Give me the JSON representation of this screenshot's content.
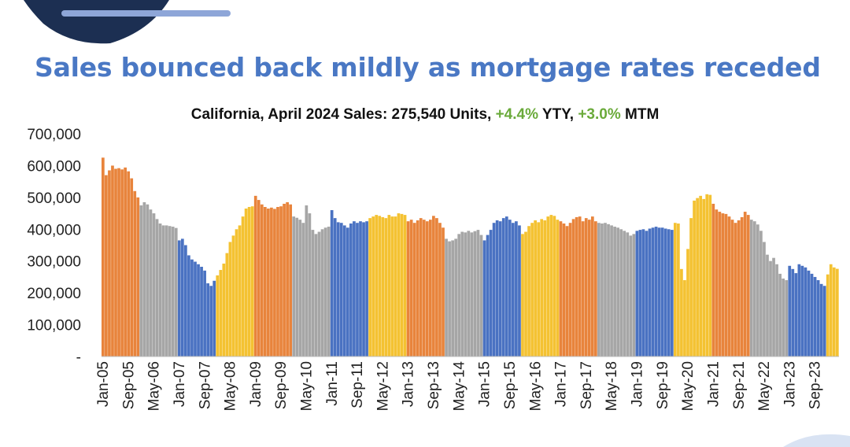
{
  "slide": {
    "headline": "Sales bounced back mildly as mortgage rates receded",
    "subtitle": {
      "prefix": "California, April 2024 Sales: 275,540 Units,",
      "yty_value": "+4.4%",
      "yty_label": "YTY,",
      "mtm_value": "+3.0%",
      "mtm_label": "MTM"
    },
    "colors": {
      "headline": "#4a78c4",
      "positive": "#6aaa3a",
      "decor": "#1c2f52",
      "decor_bar": "#8ea6d8"
    }
  },
  "chart_data": {
    "type": "bar",
    "title": "California, April 2024 Sales: 275,540 Units, +4.4% YTY, +3.0% MTM",
    "xlabel": "",
    "ylabel": "",
    "ylim": [
      0,
      700000
    ],
    "y_ticks": [
      0,
      100000,
      200000,
      300000,
      400000,
      500000,
      600000,
      700000
    ],
    "y_tick_labels": [
      "-",
      "100,000",
      "200,000",
      "300,000",
      "400,000",
      "500,000",
      "600,000",
      "700,000"
    ],
    "x_tick_labels": [
      "Jan-05",
      "Sep-05",
      "May-06",
      "Jan-07",
      "Sep-07",
      "May-08",
      "Jan-09",
      "Sep-09",
      "May-10",
      "Jan-11",
      "Sep-11",
      "May-12",
      "Jan-13",
      "Sep-13",
      "May-14",
      "Jan-15",
      "Sep-15",
      "May-16",
      "Jan-17",
      "Sep-17",
      "May-18",
      "Jan-19",
      "Sep-19",
      "May-20",
      "Jan-21",
      "Sep-21",
      "May-22",
      "Jan-23",
      "Sep-23"
    ],
    "grid": false,
    "series": [
      {
        "color": "#e8843c",
        "values": [
          625000,
          570000,
          585000,
          600000,
          590000,
          592000,
          588000,
          594000,
          582000,
          560000,
          520000,
          500000
        ]
      },
      {
        "color": "#a6a6a6",
        "values": [
          475000,
          485000,
          478000,
          462000,
          450000,
          432000,
          418000,
          412000,
          412000,
          410000,
          408000,
          404000
        ]
      },
      {
        "color": "#4a72c2",
        "values": [
          365000,
          370000,
          350000,
          318000,
          305000,
          298000,
          290000,
          282000,
          270000,
          230000,
          222000,
          238000
        ]
      },
      {
        "color": "#f4c232",
        "values": [
          255000,
          272000,
          292000,
          325000,
          360000,
          380000,
          400000,
          412000,
          440000,
          465000,
          470000,
          472000
        ]
      },
      {
        "color": "#e8843c",
        "values": [
          505000,
          492000,
          478000,
          470000,
          465000,
          468000,
          464000,
          470000,
          472000,
          480000,
          485000,
          478000
        ]
      },
      {
        "color": "#a6a6a6",
        "values": [
          440000,
          436000,
          430000,
          420000,
          475000,
          450000,
          398000,
          385000,
          392000,
          400000,
          405000,
          408000
        ]
      },
      {
        "color": "#4a72c2",
        "values": [
          460000,
          435000,
          422000,
          420000,
          412000,
          405000,
          418000,
          425000,
          420000,
          425000,
          422000,
          425000
        ]
      },
      {
        "color": "#f4c232",
        "values": [
          435000,
          440000,
          445000,
          442000,
          438000,
          435000,
          445000,
          440000,
          440000,
          450000,
          448000,
          445000
        ]
      },
      {
        "color": "#e8843c",
        "values": [
          425000,
          430000,
          420000,
          428000,
          435000,
          430000,
          425000,
          430000,
          442000,
          435000,
          420000,
          405000
        ]
      },
      {
        "color": "#a6a6a6",
        "values": [
          370000,
          362000,
          365000,
          370000,
          385000,
          392000,
          390000,
          395000,
          390000,
          394000,
          398000,
          382000
        ]
      },
      {
        "color": "#4a72c2",
        "values": [
          365000,
          382000,
          398000,
          420000,
          428000,
          425000,
          435000,
          440000,
          430000,
          420000,
          425000,
          412000
        ]
      },
      {
        "color": "#f4c232",
        "values": [
          385000,
          392000,
          410000,
          420000,
          428000,
          422000,
          432000,
          428000,
          440000,
          445000,
          442000,
          430000
        ]
      },
      {
        "color": "#e8843c",
        "values": [
          425000,
          418000,
          410000,
          420000,
          432000,
          438000,
          440000,
          425000,
          435000,
          430000,
          440000,
          425000
        ]
      },
      {
        "color": "#a6a6a6",
        "values": [
          420000,
          418000,
          420000,
          416000,
          412000,
          408000,
          405000,
          400000,
          395000,
          390000,
          380000,
          385000
        ]
      },
      {
        "color": "#4a72c2",
        "values": [
          395000,
          398000,
          400000,
          395000,
          402000,
          405000,
          408000,
          405000,
          405000,
          402000,
          400000,
          398000
        ]
      },
      {
        "color": "#f4c232",
        "values": [
          420000,
          418000,
          275000,
          240000,
          338000,
          435000,
          490000,
          498000,
          505000,
          495000,
          510000,
          508000
        ]
      },
      {
        "color": "#e8843c",
        "values": [
          480000,
          462000,
          455000,
          450000,
          448000,
          440000,
          430000,
          420000,
          428000,
          438000,
          455000,
          445000
        ]
      },
      {
        "color": "#a6a6a6",
        "values": [
          430000,
          425000,
          415000,
          395000,
          360000,
          320000,
          300000,
          310000,
          290000,
          260000,
          245000,
          240000
        ]
      },
      {
        "color": "#4a72c2",
        "values": [
          285000,
          275000,
          262000,
          290000,
          285000,
          280000,
          270000,
          260000,
          250000,
          240000,
          228000,
          222000
        ]
      },
      {
        "color": "#f4c232",
        "values": [
          258000,
          290000,
          280000,
          275540
        ]
      }
    ]
  }
}
